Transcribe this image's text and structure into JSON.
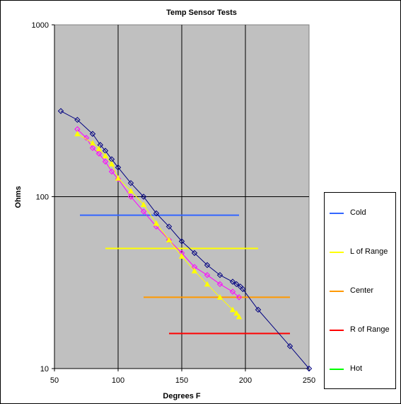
{
  "chart_data": {
    "type": "scatter",
    "title": "Temp Sensor Tests",
    "xlabel": "Degrees F",
    "ylabel": "Ohms",
    "xlim": [
      50,
      250
    ],
    "ylim": [
      10,
      1000
    ],
    "y_scale": "log",
    "x_ticks": [
      "50",
      "100",
      "150",
      "200",
      "250"
    ],
    "y_ticks": [
      "10",
      "100",
      "1000"
    ],
    "grid": true,
    "plot_background": "#c0c0c0",
    "legend_position": "right",
    "measured_series": [
      {
        "color": "#000080",
        "marker": "diamond",
        "points": [
          [
            55,
            315
          ],
          [
            68,
            280
          ],
          [
            80,
            232
          ],
          [
            86,
            200
          ],
          [
            90,
            185
          ],
          [
            95,
            165
          ],
          [
            100,
            148
          ],
          [
            110,
            120
          ],
          [
            120,
            100
          ],
          [
            130,
            80
          ],
          [
            140,
            67
          ],
          [
            150,
            55
          ],
          [
            160,
            47
          ],
          [
            170,
            40
          ],
          [
            180,
            35
          ],
          [
            190,
            32
          ],
          [
            193,
            31
          ],
          [
            196,
            30
          ],
          [
            198,
            29
          ],
          [
            210,
            22
          ],
          [
            235,
            13.5
          ],
          [
            250,
            10
          ]
        ]
      },
      {
        "color": "#ff00ff",
        "marker": "diamond",
        "points": [
          [
            68,
            247
          ],
          [
            75,
            220
          ],
          [
            80,
            192
          ],
          [
            85,
            178
          ],
          [
            90,
            160
          ],
          [
            95,
            140
          ],
          [
            100,
            127
          ],
          [
            110,
            100
          ],
          [
            120,
            82
          ],
          [
            130,
            67
          ],
          [
            140,
            56
          ],
          [
            150,
            47
          ],
          [
            160,
            39
          ],
          [
            170,
            35
          ],
          [
            180,
            31
          ],
          [
            190,
            28
          ],
          [
            195,
            26
          ]
        ]
      },
      {
        "color": "#ffff00",
        "marker": "triangle",
        "points": [
          [
            68,
            232
          ],
          [
            80,
            205
          ],
          [
            85,
            190
          ],
          [
            90,
            173
          ],
          [
            95,
            155
          ],
          [
            100,
            128
          ],
          [
            110,
            108
          ],
          [
            120,
            90
          ],
          [
            130,
            70
          ],
          [
            140,
            56
          ],
          [
            150,
            45
          ],
          [
            160,
            37
          ],
          [
            170,
            31
          ],
          [
            180,
            26
          ],
          [
            190,
            22
          ],
          [
            193,
            21
          ],
          [
            195,
            20
          ]
        ]
      }
    ],
    "series": [
      {
        "name": "Cold",
        "color": "#3366ff",
        "x": [
          70,
          195
        ],
        "y": [
          78,
          78
        ]
      },
      {
        "name": "L of Range",
        "color": "#ffff00",
        "x": [
          90,
          210
        ],
        "y": [
          50,
          50
        ]
      },
      {
        "name": "Center",
        "color": "#ff9900",
        "x": [
          120,
          235
        ],
        "y": [
          26,
          26
        ]
      },
      {
        "name": "R of Range",
        "color": "#ff0000",
        "x": [
          140,
          235
        ],
        "y": [
          16,
          16
        ]
      },
      {
        "name": "Hot",
        "color": "#00ff00",
        "x": [],
        "y": []
      }
    ]
  }
}
